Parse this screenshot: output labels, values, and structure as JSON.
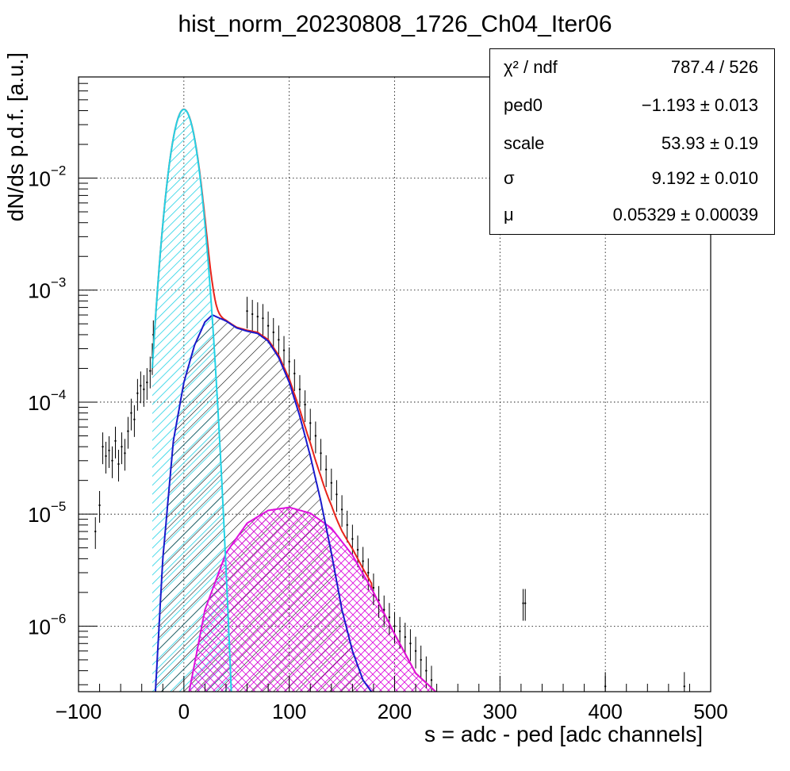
{
  "chart_data": {
    "type": "histogram",
    "title": "hist_norm_20230808_1726_Ch04_Iter06",
    "xlabel": "s = adc - ped [adc channels]",
    "ylabel": "dN/ds p.d.f. [a.u.]",
    "xlim": [
      -100,
      500
    ],
    "ylim": [
      2.6e-07,
      0.08
    ],
    "yscale": "log",
    "grid": true,
    "x_ticks": [
      "−100",
      "0",
      "100",
      "200",
      "300",
      "400",
      "500"
    ],
    "y_ticks": [
      {
        "mantissa": "10",
        "exp": "−2",
        "value": 0.01
      },
      {
        "mantissa": "10",
        "exp": "−3",
        "value": 0.001
      },
      {
        "mantissa": "10",
        "exp": "−4",
        "value": 0.0001
      },
      {
        "mantissa": "10",
        "exp": "−5",
        "value": 1e-05
      },
      {
        "mantissa": "10",
        "exp": "−6",
        "value": 1e-06
      }
    ],
    "colors": {
      "data": "#000000",
      "total_fit": "#e8231a",
      "pedestal": "#22d3e6",
      "single_pe": "#1a1acc",
      "double_pe": "#dd10dd"
    },
    "fit_components": [
      {
        "component": "pedestal",
        "shape": "gaussian",
        "amplitude": 0.041,
        "mean": 0,
        "sigma": 9.2,
        "x_range": [
          -30,
          45
        ]
      },
      {
        "component": "single_pe",
        "shape": "smooth_curve",
        "x_range": [
          -27,
          178
        ],
        "points": [
          [
            -27,
            2.6e-07
          ],
          [
            -20,
            4e-06
          ],
          [
            -10,
            4.5e-05
          ],
          [
            0,
            0.00015
          ],
          [
            10,
            0.00032
          ],
          [
            20,
            0.00052
          ],
          [
            27,
            0.0006
          ],
          [
            40,
            0.00053
          ],
          [
            50,
            0.00046
          ],
          [
            60,
            0.00043
          ],
          [
            70,
            0.00041
          ],
          [
            80,
            0.00035
          ],
          [
            90,
            0.00025
          ],
          [
            100,
            0.00015
          ],
          [
            110,
            7.5e-05
          ],
          [
            120,
            3.3e-05
          ],
          [
            130,
            1.3e-05
          ],
          [
            140,
            4.5e-06
          ],
          [
            150,
            1.4e-06
          ],
          [
            160,
            6e-07
          ],
          [
            170,
            3.3e-07
          ],
          [
            178,
            2.6e-07
          ]
        ]
      },
      {
        "component": "double_pe",
        "shape": "smooth_curve",
        "x_range": [
          5,
          239
        ],
        "points": [
          [
            5,
            2.6e-07
          ],
          [
            20,
            1.4e-06
          ],
          [
            40,
            4.5e-06
          ],
          [
            60,
            8.3e-06
          ],
          [
            80,
            1.08e-05
          ],
          [
            100,
            1.15e-05
          ],
          [
            120,
            1.02e-05
          ],
          [
            140,
            7.5e-06
          ],
          [
            160,
            4.3e-06
          ],
          [
            180,
            2e-06
          ],
          [
            200,
            8.5e-07
          ],
          [
            220,
            3.8e-07
          ],
          [
            239,
            2.6e-07
          ]
        ]
      },
      {
        "component": "total",
        "shape": "sum",
        "x_range": [
          -30,
          239
        ]
      }
    ],
    "data_points": [
      [
        -88,
        1.2e-07
      ],
      [
        -84,
        7e-06
      ],
      [
        -80,
        1.2e-05
      ],
      [
        -77,
        4e-05
      ],
      [
        -74,
        3.3e-05
      ],
      [
        -71,
        3.7e-05
      ],
      [
        -68,
        3e-05
      ],
      [
        -65,
        4.5e-05
      ],
      [
        -62,
        2.8e-05
      ],
      [
        -59,
        4e-05
      ],
      [
        -56,
        3.5e-05
      ],
      [
        -53,
        5.5e-05
      ],
      [
        -50,
        8e-05
      ],
      [
        -47,
        7e-05
      ],
      [
        -44,
        0.00012
      ],
      [
        -41,
        0.00014
      ],
      [
        -38,
        0.00013
      ],
      [
        -35,
        0.00015
      ],
      [
        -32,
        0.00019
      ],
      [
        -30,
        0.00025
      ],
      [
        -29,
        0.0004
      ],
      [
        60,
        0.00065
      ],
      [
        65,
        0.00061
      ],
      [
        70,
        0.00058
      ],
      [
        75,
        0.00056
      ],
      [
        80,
        0.00048
      ],
      [
        85,
        0.00042
      ],
      [
        90,
        0.00036
      ],
      [
        95,
        0.00029
      ],
      [
        100,
        0.00023
      ],
      [
        105,
        0.00018
      ],
      [
        110,
        0.00013
      ],
      [
        115,
        9.5e-05
      ],
      [
        120,
        6.5e-05
      ],
      [
        125,
        5e-05
      ],
      [
        130,
        3.5e-05
      ],
      [
        135,
        2.5e-05
      ],
      [
        140,
        1.9e-05
      ],
      [
        145,
        1.5e-05
      ],
      [
        150,
        1.1e-05
      ],
      [
        155,
        8e-06
      ],
      [
        160,
        6e-06
      ],
      [
        165,
        4.8e-06
      ],
      [
        170,
        3.8e-06
      ],
      [
        175,
        3e-06
      ],
      [
        180,
        2.2e-06
      ],
      [
        185,
        1.7e-06
      ],
      [
        190,
        1.4e-06
      ],
      [
        195,
        1.2e-06
      ],
      [
        200,
        1e-06
      ],
      [
        205,
        9e-07
      ],
      [
        210,
        8e-07
      ],
      [
        215,
        7e-07
      ],
      [
        220,
        6e-07
      ],
      [
        225,
        5e-07
      ],
      [
        230,
        4e-07
      ],
      [
        235,
        3.3e-07
      ],
      [
        322,
        1.6e-06
      ],
      [
        324,
        1.6e-06
      ],
      [
        400,
        2.9e-07
      ],
      [
        475,
        2.9e-07
      ]
    ],
    "stats_box": [
      {
        "name": "χ² / ndf",
        "value": "787.4 / 526"
      },
      {
        "name": "ped0",
        "value": "−1.193 ± 0.013"
      },
      {
        "name": "scale",
        "value": "53.93 ± 0.19"
      },
      {
        "name": "σ",
        "value": "9.192 ± 0.010"
      },
      {
        "name": "μ",
        "value": "0.05329 ± 0.00039"
      }
    ]
  }
}
